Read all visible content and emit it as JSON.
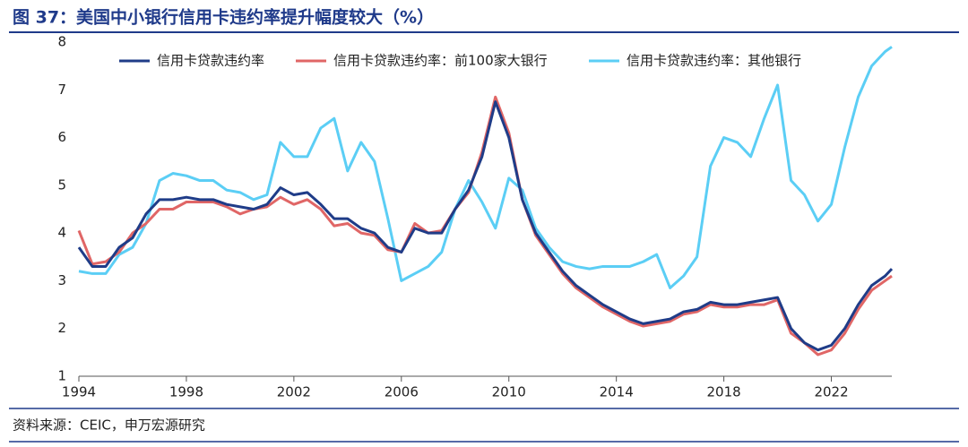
{
  "chart_data": {
    "type": "line",
    "title": "图 37：美国中小银行信用卡违约率提升幅度较大（%）",
    "source": "资料来源：CEIC，申万宏源研究",
    "x": [
      1994,
      1994.5,
      1995,
      1995.5,
      1996,
      1996.5,
      1997,
      1997.5,
      1998,
      1998.5,
      1999,
      1999.5,
      2000,
      2000.5,
      2001,
      2001.5,
      2002,
      2002.5,
      2003,
      2003.5,
      2004,
      2004.5,
      2005,
      2005.5,
      2006,
      2006.5,
      2007,
      2007.5,
      2008,
      2008.5,
      2009,
      2009.5,
      2010,
      2010.5,
      2011,
      2011.5,
      2012,
      2012.5,
      2013,
      2013.5,
      2014,
      2014.5,
      2015,
      2015.5,
      2016,
      2016.5,
      2017,
      2017.5,
      2018,
      2018.5,
      2019,
      2019.5,
      2020,
      2020.5,
      2021,
      2021.5,
      2022,
      2022.5,
      2023,
      2023.5,
      2024,
      2024.25
    ],
    "series": [
      {
        "name": "信用卡贷款违约率",
        "color": "#1f3c88",
        "values": [
          3.7,
          3.3,
          3.3,
          3.7,
          3.9,
          4.4,
          4.7,
          4.7,
          4.75,
          4.7,
          4.7,
          4.6,
          4.55,
          4.5,
          4.6,
          4.95,
          4.8,
          4.85,
          4.6,
          4.3,
          4.3,
          4.1,
          4.0,
          3.7,
          3.6,
          4.1,
          4.0,
          4.0,
          4.5,
          4.9,
          5.6,
          6.75,
          6.0,
          4.7,
          4.0,
          3.6,
          3.2,
          2.9,
          2.7,
          2.5,
          2.35,
          2.2,
          2.1,
          2.15,
          2.2,
          2.35,
          2.4,
          2.55,
          2.5,
          2.5,
          2.55,
          2.6,
          2.65,
          2.0,
          1.7,
          1.55,
          1.65,
          2.0,
          2.5,
          2.9,
          3.1,
          3.25
        ]
      },
      {
        "name": "信用卡贷款违约率：前100家大银行",
        "color": "#e06666",
        "values": [
          4.05,
          3.35,
          3.4,
          3.6,
          4.0,
          4.2,
          4.5,
          4.5,
          4.65,
          4.65,
          4.65,
          4.55,
          4.4,
          4.5,
          4.55,
          4.75,
          4.6,
          4.7,
          4.5,
          4.15,
          4.2,
          4.0,
          3.95,
          3.65,
          3.6,
          4.2,
          4.0,
          4.05,
          4.5,
          4.85,
          5.7,
          6.85,
          6.1,
          4.7,
          3.95,
          3.55,
          3.15,
          2.85,
          2.65,
          2.45,
          2.3,
          2.15,
          2.05,
          2.1,
          2.15,
          2.3,
          2.35,
          2.5,
          2.45,
          2.45,
          2.5,
          2.5,
          2.6,
          1.9,
          1.7,
          1.45,
          1.55,
          1.9,
          2.4,
          2.8,
          3.0,
          3.1
        ]
      },
      {
        "name": "信用卡贷款违约率：其他银行",
        "color": "#5bcef5",
        "values": [
          3.2,
          3.15,
          3.15,
          3.55,
          3.7,
          4.2,
          5.1,
          5.25,
          5.2,
          5.1,
          5.1,
          4.9,
          4.85,
          4.7,
          4.8,
          5.9,
          5.6,
          5.6,
          6.2,
          6.4,
          5.3,
          5.9,
          5.5,
          4.3,
          3.0,
          3.15,
          3.3,
          3.6,
          4.5,
          5.1,
          4.65,
          4.1,
          5.15,
          4.9,
          4.1,
          3.7,
          3.4,
          3.3,
          3.25,
          3.3,
          3.3,
          3.3,
          3.4,
          3.55,
          2.85,
          3.1,
          3.5,
          5.4,
          6.0,
          5.9,
          5.6,
          6.4,
          7.1,
          5.1,
          4.8,
          4.25,
          4.6,
          5.8,
          6.85,
          7.5,
          7.8,
          7.9
        ]
      }
    ],
    "xlim": [
      1994,
      2024.25
    ],
    "ylim": [
      1,
      8
    ],
    "xticks": [
      1994,
      1998,
      2002,
      2006,
      2010,
      2014,
      2018,
      2022
    ],
    "yticks": [
      1,
      2,
      3,
      4,
      5,
      6,
      7,
      8
    ]
  }
}
